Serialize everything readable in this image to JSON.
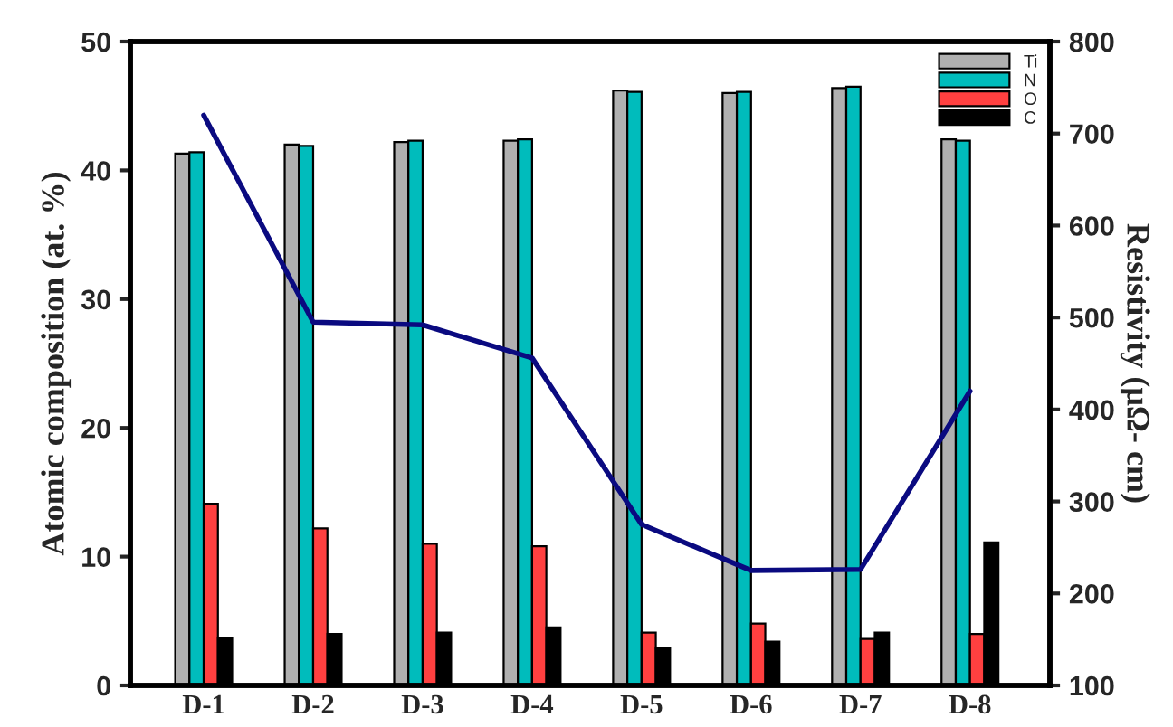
{
  "chart_data": {
    "type": "bar",
    "categories": [
      "D-1",
      "D-2",
      "D-3",
      "D-4",
      "D-5",
      "D-6",
      "D-7",
      "D-8"
    ],
    "ylabel": "Atomic composition (at. %)",
    "y2label": "Resistivity (μΩ- cm)",
    "series": [
      {
        "name": "Ti",
        "color": "#b0b0b0",
        "values": [
          41.3,
          42.0,
          42.2,
          42.3,
          46.2,
          46.0,
          46.4,
          42.4
        ]
      },
      {
        "name": "N",
        "color": "#00bcbc",
        "values": [
          41.4,
          41.9,
          42.3,
          42.4,
          46.1,
          46.1,
          46.5,
          42.3
        ]
      },
      {
        "name": "O",
        "color": "#ff4040",
        "values": [
          14.1,
          12.2,
          11.0,
          10.8,
          4.1,
          4.8,
          3.6,
          4.0
        ]
      },
      {
        "name": "C",
        "color": "#000000",
        "values": [
          3.7,
          4.0,
          4.1,
          4.5,
          2.9,
          3.4,
          4.1,
          11.1
        ]
      },
      {
        "type": "line",
        "axis": "y2",
        "color": "#0a0a80",
        "values": [
          720,
          495,
          492,
          456,
          275,
          225,
          226,
          420
        ]
      }
    ],
    "ylim": [
      0,
      50
    ],
    "yticks": [
      0,
      10,
      20,
      30,
      40,
      50
    ],
    "y2lim": [
      100,
      800
    ],
    "y2ticks": [
      100,
      200,
      300,
      400,
      500,
      600,
      700,
      800
    ],
    "legend": "top right",
    "grid": false,
    "marker": "none",
    "line_style": "solid"
  }
}
